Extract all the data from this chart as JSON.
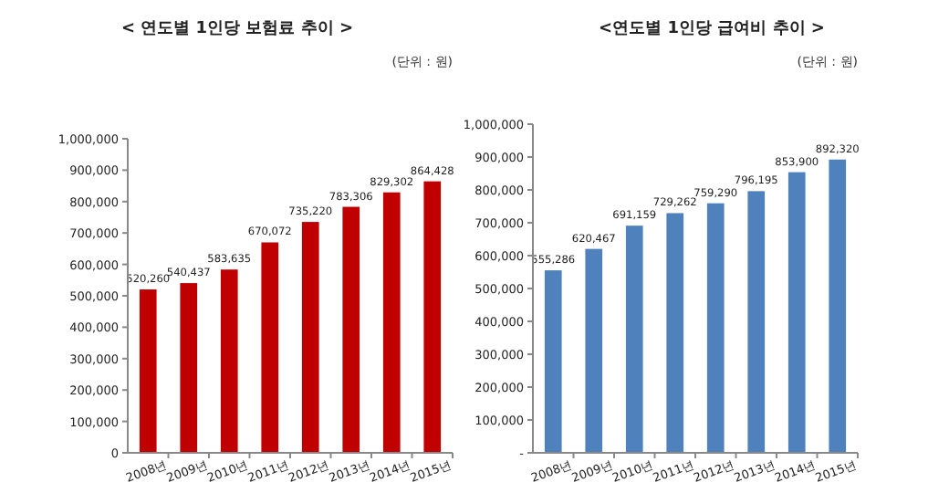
{
  "chart_data": [
    {
      "type": "bar",
      "title": "< 연도별 1인당 보험료 추이 >",
      "annotations": [
        "(단위 : 원)"
      ],
      "categories": [
        "2008년",
        "2009년",
        "2010년",
        "2011년",
        "2012년",
        "2013년",
        "2014년",
        "2015년"
      ],
      "series": [
        {
          "color": "#c00000",
          "values": [
            520260,
            540437,
            583635,
            670072,
            735220,
            783306,
            829302,
            864428
          ]
        }
      ],
      "value_labels": [
        "520,260",
        "540,437",
        "583,635",
        "670,072",
        "735,220",
        "783,306",
        "829,302",
        "864,428"
      ],
      "ylim": [
        0,
        1000000
      ],
      "yticks": [
        0,
        {
          "value": 100000,
          "label": "100,000"
        },
        {
          "value": 200000,
          "label": "200,000"
        },
        {
          "value": 300000,
          "label": "300,000"
        },
        {
          "value": 400000,
          "label": "400,000"
        },
        {
          "value": 500000,
          "label": "500,000"
        },
        {
          "value": 600000,
          "label": "600,000"
        },
        {
          "value": 700000,
          "label": "700,000"
        },
        {
          "value": 800000,
          "label": "800,000"
        },
        {
          "value": 900000,
          "label": "900,000"
        },
        {
          "value": 1000000,
          "label": "1,000,000"
        }
      ],
      "grid": false
    },
    {
      "type": "bar",
      "title": "<연도별 1인당 급여비 추이 >",
      "annotations": [
        "(단위 : 원)"
      ],
      "categories": [
        "2008년",
        "2009년",
        "2010년",
        "2011년",
        "2012년",
        "2013년",
        "2014년",
        "2015년"
      ],
      "series": [
        {
          "color": "#4f81bd",
          "values": [
            555286,
            620467,
            691159,
            729262,
            759290,
            796195,
            853900,
            892320
          ]
        }
      ],
      "value_labels": [
        "555,286",
        "620,467",
        "691,159",
        "729,262",
        "759,290",
        "796,195",
        "853,900",
        "892,320"
      ],
      "ylim": [
        0,
        1000000
      ],
      "yticks": [
        {
          "value": 0,
          "label": "-"
        },
        {
          "value": 100000,
          "label": "100,000"
        },
        {
          "value": 200000,
          "label": "200,000"
        },
        {
          "value": 300000,
          "label": "300,000"
        },
        {
          "value": 400000,
          "label": "400,000"
        },
        {
          "value": 500000,
          "label": "500,000"
        },
        {
          "value": 600000,
          "label": "600,000"
        },
        {
          "value": 700000,
          "label": "700,000"
        },
        {
          "value": 800000,
          "label": "800,000"
        },
        {
          "value": 900000,
          "label": "900,000"
        },
        {
          "value": 1000000,
          "label": "1,000,000"
        }
      ],
      "grid": false
    }
  ]
}
